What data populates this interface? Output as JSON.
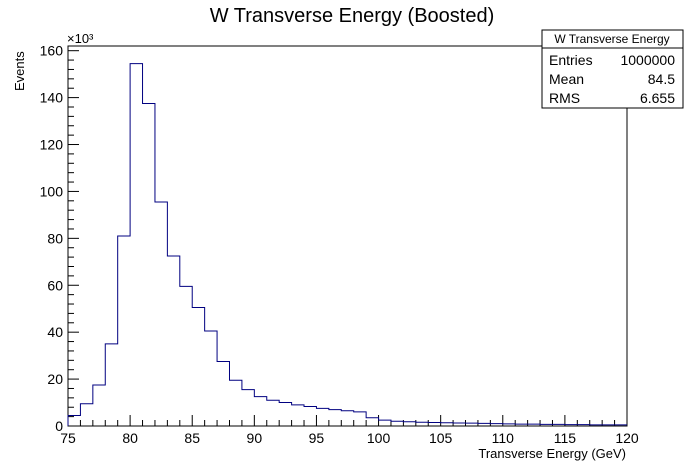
{
  "chart_data": {
    "type": "histogram",
    "title": "W Transverse Energy (Boosted)",
    "xlabel": "Transverse Energy (GeV)",
    "ylabel": "Events",
    "y_multiplier_label": "×10³",
    "xlim": [
      75,
      120
    ],
    "ylim": [
      0,
      162
    ],
    "y_unit_scale": 1000,
    "x_ticks": [
      75,
      80,
      85,
      90,
      95,
      100,
      105,
      110,
      115,
      120
    ],
    "y_ticks": [
      0,
      20,
      40,
      60,
      80,
      100,
      120,
      140,
      160
    ],
    "bin_edges_start": 75,
    "bin_width": 1,
    "values": [
      4.5,
      9.5,
      17.5,
      35,
      81,
      154.5,
      137.5,
      95.5,
      72.5,
      59.5,
      50.5,
      40.5,
      27.5,
      19.5,
      15.5,
      12.5,
      11,
      10,
      9,
      8.3,
      7.5,
      7,
      6.5,
      6,
      3.5,
      2.5,
      2,
      1.8,
      1.6,
      1.5,
      1.4,
      1.3,
      1.2,
      1.1,
      1.0,
      0.9,
      0.8,
      0.8,
      0.7,
      0.7,
      0.6,
      0.6,
      0.5,
      0.5,
      0.5
    ],
    "line_color": "#000080",
    "stats": {
      "name": "W Transverse Energy",
      "rows": [
        {
          "label": "Entries",
          "value": "1000000"
        },
        {
          "label": "Mean",
          "value": "84.5"
        },
        {
          "label": "RMS",
          "value": "6.655"
        }
      ]
    }
  }
}
